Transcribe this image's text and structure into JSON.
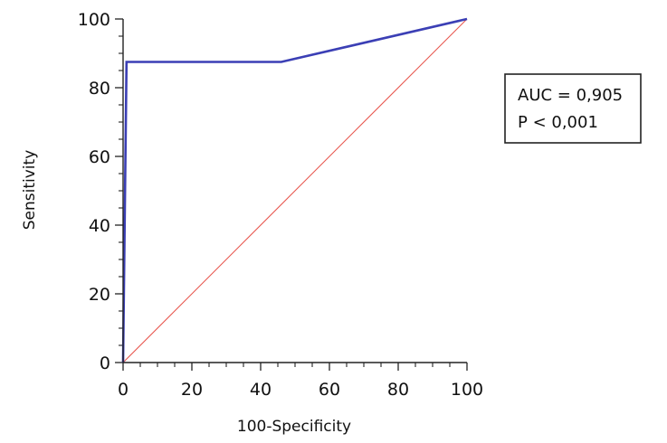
{
  "chart_data": {
    "type": "line",
    "xlabel": "100-Specificity",
    "ylabel": "Sensitivity",
    "xlim": [
      0,
      100
    ],
    "ylim": [
      0,
      100
    ],
    "x_ticks": [
      0,
      20,
      40,
      60,
      80,
      100
    ],
    "y_ticks": [
      0,
      20,
      40,
      60,
      80,
      100
    ],
    "x_minor_step": 5,
    "y_minor_step": 5,
    "grid": false,
    "legend": "none",
    "series": [
      {
        "role": "roc-curve",
        "color": "#3b3fb5",
        "points": [
          {
            "x": 0,
            "y": 0
          },
          {
            "x": 1,
            "y": 87.5
          },
          {
            "x": 46,
            "y": 87.5
          },
          {
            "x": 100,
            "y": 100
          }
        ]
      },
      {
        "role": "reference-diagonal",
        "color": "#e8574f",
        "points": [
          {
            "x": 0,
            "y": 0
          },
          {
            "x": 100,
            "y": 100
          }
        ]
      }
    ],
    "annotations": {
      "auc": "AUC = 0,905",
      "p_value": "P < 0,001"
    }
  }
}
